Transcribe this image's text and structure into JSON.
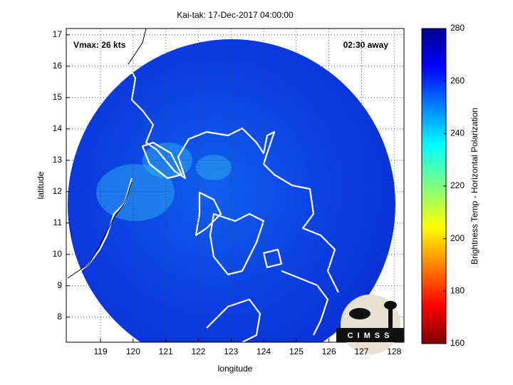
{
  "map": {
    "title": "Kai-tak: 17-Dec-2017 04:00:00",
    "vmax_label": "Vmax: 26 kts",
    "time_label": "02:30 away",
    "xlabel": "longitude",
    "ylabel": "latitude",
    "xlim": [
      117.95,
      128.3
    ],
    "ylim": [
      7.2,
      17.2
    ],
    "xticks": [
      119,
      120,
      121,
      122,
      123,
      124,
      125,
      126,
      127,
      128
    ],
    "yticks": [
      8,
      9,
      10,
      11,
      12,
      13,
      14,
      15,
      16,
      17
    ],
    "grid": true,
    "colorbar": {
      "label": "Brightness Temp - Horizontal Polarization",
      "lim": [
        160,
        280
      ],
      "ticks": [
        160,
        180,
        200,
        220,
        240,
        260,
        280
      ]
    },
    "logo": "CIMSS"
  }
}
